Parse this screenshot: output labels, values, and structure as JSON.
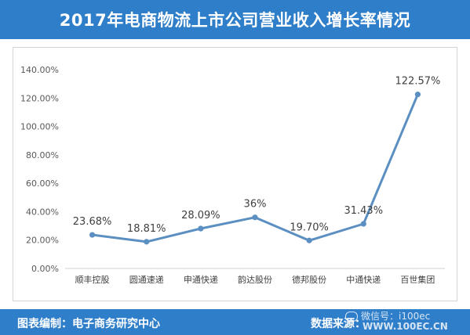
{
  "header": {
    "title": "2017年电商物流上市公司营业收入增长率情况"
  },
  "footer": {
    "left_text": "图表编制：电子商务研究中心",
    "right_text": "数据来源：",
    "watermark_line1": "微信号：i100ec",
    "watermark_line2": "WWW.100EC.CN"
  },
  "colors": {
    "brand_blue": "#2f7ec9",
    "series_line": "#5b8fc2"
  },
  "chart_data": {
    "type": "line",
    "title": "2017年电商物流上市公司营业收入增长率情况",
    "categories": [
      "顺丰控股",
      "圆通速递",
      "申通快递",
      "韵达股份",
      "德邦股份",
      "中通快递",
      "百世集团"
    ],
    "series": [
      {
        "values": [
          23.68,
          18.81,
          28.09,
          36,
          19.7,
          31.43,
          122.57
        ],
        "data_labels": [
          "23.68%",
          "18.81%",
          "28.09%",
          "36%",
          "19.70%",
          "31.43%",
          "122.57%"
        ]
      }
    ],
    "ylim": [
      0,
      140
    ],
    "yticks": [
      0,
      20,
      40,
      60,
      80,
      100,
      120,
      140
    ],
    "ytick_labels": [
      "0.00%",
      "20.00%",
      "40.00%",
      "60.00%",
      "80.00%",
      "100.00%",
      "120.00%",
      "140.00%"
    ],
    "xlabel": "",
    "ylabel": "",
    "grid": false,
    "legend": "none"
  }
}
